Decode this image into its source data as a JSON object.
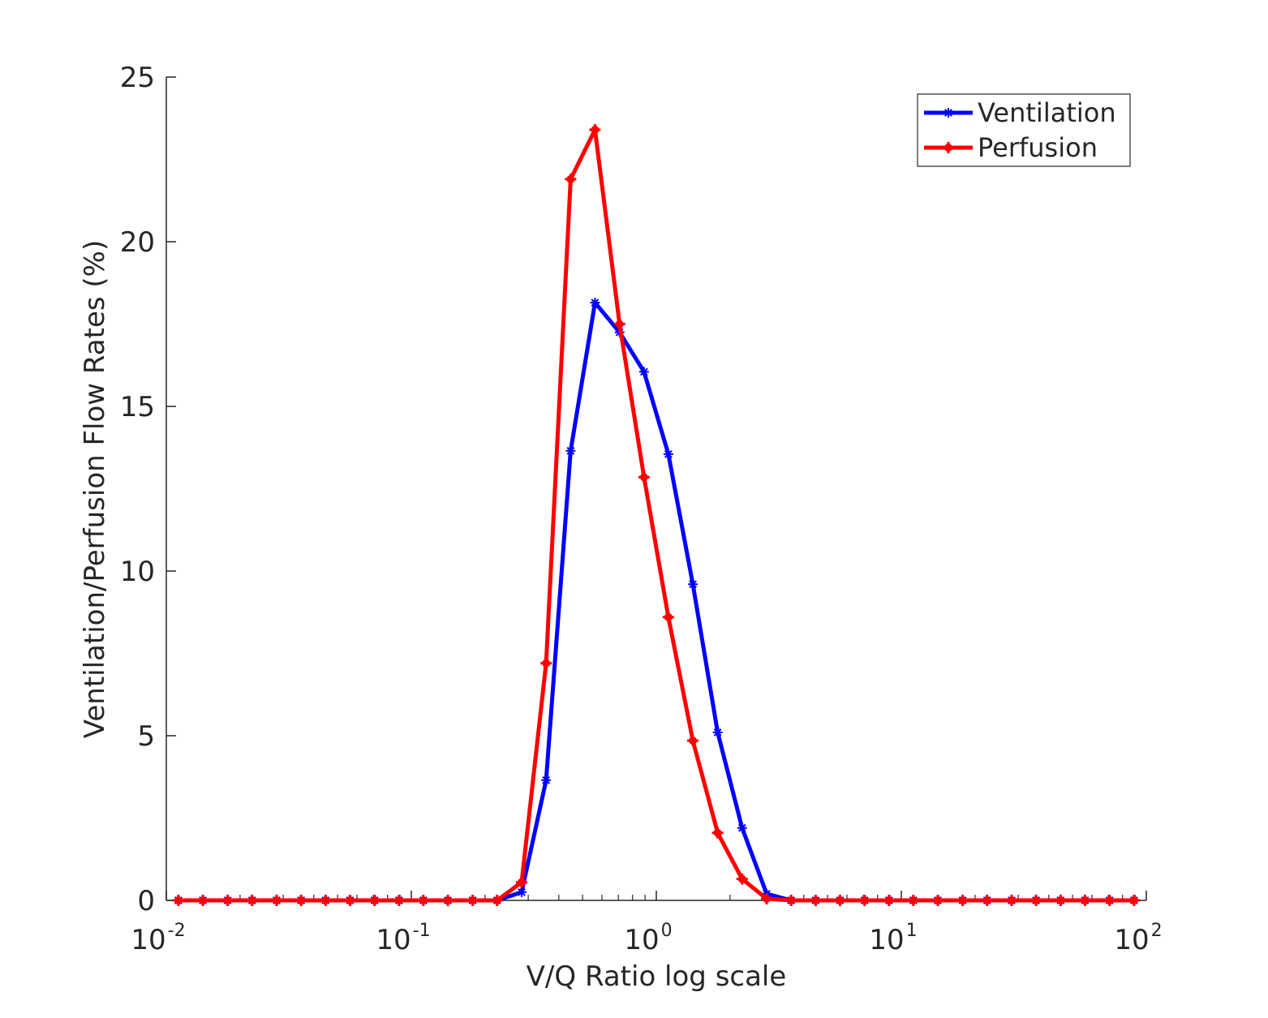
{
  "chart_data": {
    "type": "line",
    "title": "",
    "xlabel": "V/Q Ratio log scale",
    "ylabel": "Ventilation/Perfusion Flow Rates (%)",
    "x_scale": "log",
    "xlim": [
      0.01,
      100
    ],
    "ylim": [
      0,
      25
    ],
    "x_ticks": [
      {
        "base": "10",
        "exp": "-2",
        "value": 0.01
      },
      {
        "base": "10",
        "exp": "-1",
        "value": 0.1
      },
      {
        "base": "10",
        "exp": "0",
        "value": 1
      },
      {
        "base": "10",
        "exp": "1",
        "value": 10
      },
      {
        "base": "10",
        "exp": "2",
        "value": 100
      }
    ],
    "y_ticks": [
      0,
      5,
      10,
      15,
      20,
      25
    ],
    "grid": false,
    "legend_position": "top-right",
    "x": [
      0.0112,
      0.0141,
      0.0178,
      0.0224,
      0.0282,
      0.0355,
      0.0447,
      0.0562,
      0.0708,
      0.0891,
      0.112,
      0.141,
      0.178,
      0.224,
      0.282,
      0.355,
      0.447,
      0.562,
      0.708,
      0.891,
      1.12,
      1.41,
      1.78,
      2.24,
      2.82,
      3.55,
      4.47,
      5.62,
      7.08,
      8.91,
      11.2,
      14.1,
      17.8,
      22.4,
      28.2,
      35.5,
      44.7,
      56.2,
      70.8,
      89.1
    ],
    "series": [
      {
        "name": "Ventilation",
        "color": "#0000ff",
        "marker": "star",
        "values": [
          0,
          0,
          0,
          0,
          0,
          0,
          0,
          0,
          0,
          0,
          0,
          0,
          0,
          0,
          0.25,
          3.65,
          13.65,
          18.15,
          17.25,
          16.05,
          13.55,
          9.6,
          5.1,
          2.2,
          0.2,
          0,
          0,
          0,
          0,
          0,
          0,
          0,
          0,
          0,
          0,
          0,
          0,
          0,
          0,
          0
        ]
      },
      {
        "name": "Perfusion",
        "color": "#ff0000",
        "marker": "plus",
        "values": [
          0,
          0,
          0,
          0,
          0,
          0,
          0,
          0,
          0,
          0,
          0,
          0,
          0,
          0,
          0.55,
          7.2,
          21.9,
          23.4,
          17.5,
          12.85,
          8.6,
          4.85,
          2.05,
          0.65,
          0.05,
          0,
          0,
          0,
          0,
          0,
          0,
          0,
          0,
          0,
          0,
          0,
          0,
          0,
          0,
          0
        ]
      }
    ]
  }
}
